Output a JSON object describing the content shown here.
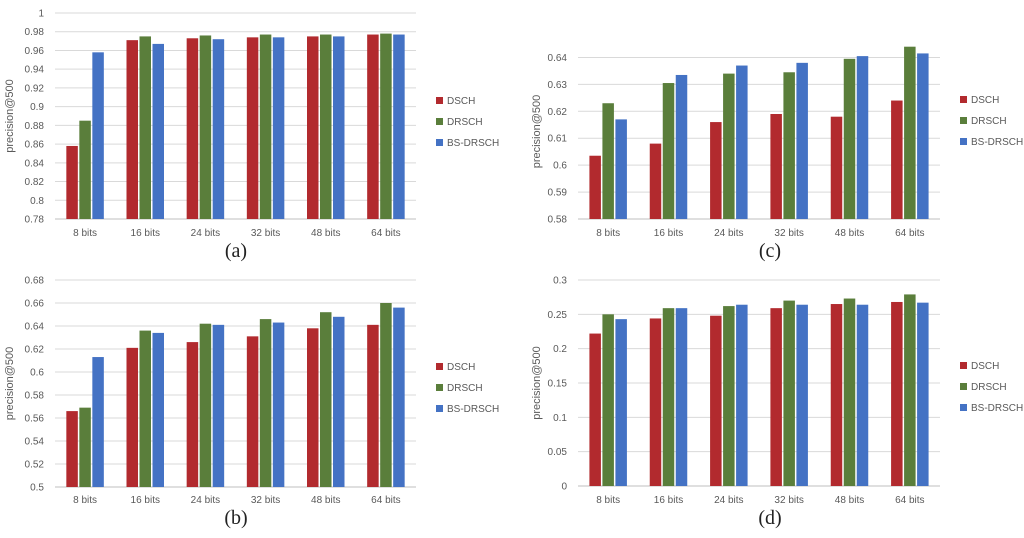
{
  "chart_data": [
    {
      "type": "bar",
      "caption": "(a)",
      "ylabel": "precision@500",
      "categories": [
        "8 bits",
        "16 bits",
        "24 bits",
        "32 bits",
        "48 bits",
        "64 bits"
      ],
      "ylim": [
        0.78,
        1
      ],
      "yticks": [
        "0.78",
        "0.8",
        "0.82",
        "0.84",
        "0.86",
        "0.88",
        "0.9",
        "0.92",
        "0.94",
        "0.96",
        "0.98",
        "1"
      ],
      "series": [
        {
          "name": "DSCH",
          "values": [
            0.858,
            0.971,
            0.973,
            0.974,
            0.975,
            0.977
          ]
        },
        {
          "name": "DRSCH",
          "values": [
            0.885,
            0.975,
            0.976,
            0.977,
            0.977,
            0.978
          ]
        },
        {
          "name": "BS-DRSCH",
          "values": [
            0.958,
            0.967,
            0.972,
            0.974,
            0.975,
            0.977
          ]
        }
      ],
      "grid": true,
      "legend_position": "right"
    },
    {
      "type": "bar",
      "caption": "(b)",
      "ylabel": "precision@500",
      "categories": [
        "8 bits",
        "16 bits",
        "24 bits",
        "32 bits",
        "48 bits",
        "64 bits"
      ],
      "ylim": [
        0.5,
        0.68
      ],
      "yticks": [
        "0.5",
        "0.52",
        "0.54",
        "0.56",
        "0.58",
        "0.6",
        "0.62",
        "0.64",
        "0.66",
        "0.68"
      ],
      "series": [
        {
          "name": "DSCH",
          "values": [
            0.566,
            0.621,
            0.626,
            0.631,
            0.638,
            0.641
          ]
        },
        {
          "name": "DRSCH",
          "values": [
            0.569,
            0.636,
            0.642,
            0.646,
            0.652,
            0.66
          ]
        },
        {
          "name": "BS-DRSCH",
          "values": [
            0.613,
            0.634,
            0.641,
            0.643,
            0.648,
            0.656
          ]
        }
      ],
      "grid": true,
      "legend_position": "right"
    },
    {
      "type": "bar",
      "caption": "(c)",
      "ylabel": "precision@500",
      "categories": [
        "8 bits",
        "16 bits",
        "24 bits",
        "32 bits",
        "48 bits",
        "64 bits"
      ],
      "ylim": [
        0.58,
        0.645
      ],
      "yticks": [
        "0.58",
        "0.59",
        "0.6",
        "0.61",
        "0.62",
        "0.63",
        "0.64"
      ],
      "series": [
        {
          "name": "DSCH",
          "values": [
            0.6035,
            0.608,
            0.616,
            0.619,
            0.618,
            0.624
          ]
        },
        {
          "name": "DRSCH",
          "values": [
            0.623,
            0.6305,
            0.634,
            0.6345,
            0.6395,
            0.644
          ]
        },
        {
          "name": "BS-DRSCH",
          "values": [
            0.617,
            0.6335,
            0.637,
            0.638,
            0.6405,
            0.6415
          ]
        }
      ],
      "grid": true,
      "legend_position": "right"
    },
    {
      "type": "bar",
      "caption": "(d)",
      "ylabel": "precision@500",
      "categories": [
        "8 bits",
        "16 bits",
        "24 bits",
        "32 bits",
        "48 bits",
        "64 bits"
      ],
      "ylim": [
        0,
        0.3
      ],
      "yticks": [
        "0",
        "0.05",
        "0.1",
        "0.15",
        "0.2",
        "0.25",
        "0.3"
      ],
      "series": [
        {
          "name": "DSCH",
          "values": [
            0.222,
            0.244,
            0.248,
            0.259,
            0.265,
            0.268
          ]
        },
        {
          "name": "DRSCH",
          "values": [
            0.25,
            0.259,
            0.262,
            0.27,
            0.273,
            0.279
          ]
        },
        {
          "name": "BS-DRSCH",
          "values": [
            0.243,
            0.259,
            0.264,
            0.264,
            0.264,
            0.267
          ]
        }
      ],
      "grid": true,
      "legend_position": "right"
    }
  ],
  "colors": {
    "DSCH": "#b22a2e",
    "DRSCH": "#5a7e3b",
    "BS-DRSCH": "#4472c4",
    "grid": "#d9d9d9",
    "axis": "#bfbfbf",
    "text": "#595959"
  }
}
